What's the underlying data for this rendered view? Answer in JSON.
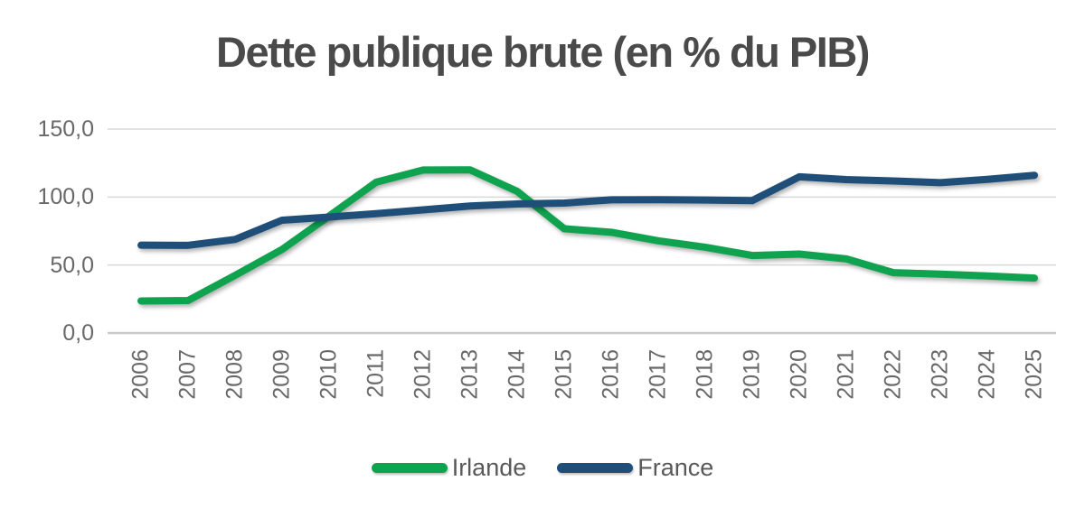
{
  "title": "Dette publique brute (en % du PIB)",
  "chart_data": {
    "type": "line",
    "title": "Dette publique brute (en % du PIB)",
    "categories": [
      "2006",
      "2007",
      "2008",
      "2009",
      "2010",
      "2011",
      "2012",
      "2013",
      "2014",
      "2015",
      "2016",
      "2017",
      "2018",
      "2019",
      "2020",
      "2021",
      "2022",
      "2023",
      "2024",
      "2025"
    ],
    "series": [
      {
        "name": "Irlande",
        "color": "#0fa34f",
        "values": [
          23.6,
          23.9,
          42.4,
          61.5,
          86.0,
          110.9,
          119.9,
          120.0,
          104.2,
          76.7,
          74.1,
          67.8,
          63.1,
          57.0,
          58.1,
          54.5,
          44.4,
          43.3,
          42.0,
          40.4
        ]
      },
      {
        "name": "France",
        "color": "#1f4e79",
        "values": [
          64.6,
          64.5,
          68.8,
          83.0,
          85.3,
          87.8,
          90.6,
          93.4,
          94.9,
          95.6,
          98.0,
          98.1,
          97.8,
          97.4,
          114.9,
          112.8,
          111.8,
          110.6,
          113.0,
          116.0
        ]
      }
    ],
    "ylim": [
      0,
      150
    ],
    "yticks": [
      {
        "value": 0,
        "label": "0,0"
      },
      {
        "value": 50,
        "label": "50,0"
      },
      {
        "value": 100,
        "label": "100,0"
      },
      {
        "value": 150,
        "label": "150,0"
      }
    ],
    "xlabel": "",
    "ylabel": "",
    "grid": true,
    "legend_position": "bottom"
  },
  "colors": {
    "background": "#ffffff",
    "title_text": "#4a4a4a",
    "axis_text": "#686868",
    "legend_text": "#595959",
    "gridline": "#d9d9d9",
    "axis_line": "#c9c9c9"
  }
}
